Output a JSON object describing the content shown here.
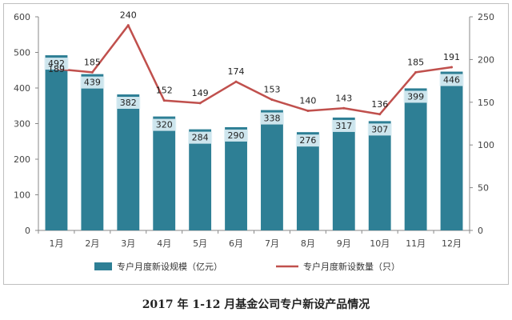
{
  "caption": "2017 年 1-12 月基金公司专户新设产品情况",
  "chart_data": {
    "type": "bar",
    "categories": [
      "1月",
      "2月",
      "3月",
      "4月",
      "5月",
      "6月",
      "7月",
      "8月",
      "9月",
      "10月",
      "11月",
      "12月"
    ],
    "series": [
      {
        "name": "专户月度新设规模（亿元）",
        "type": "bar",
        "axis": "left",
        "values": [
          492,
          439,
          382,
          320,
          284,
          290,
          338,
          276,
          317,
          307,
          399,
          446
        ],
        "color": "#2e7f95"
      },
      {
        "name": "专户月度新设数量（只）",
        "type": "line",
        "axis": "right",
        "values": [
          189,
          185,
          240,
          152,
          149,
          174,
          153,
          140,
          143,
          136,
          185,
          191
        ],
        "color": "#c0504d"
      }
    ],
    "y_left": {
      "min": 0,
      "max": 600,
      "ticks": [
        0,
        100,
        200,
        300,
        400,
        500,
        600
      ]
    },
    "y_right": {
      "min": 0,
      "max": 250,
      "ticks": [
        0,
        50,
        100,
        150,
        200,
        250
      ]
    },
    "legend_position": "bottom",
    "grid": false
  }
}
